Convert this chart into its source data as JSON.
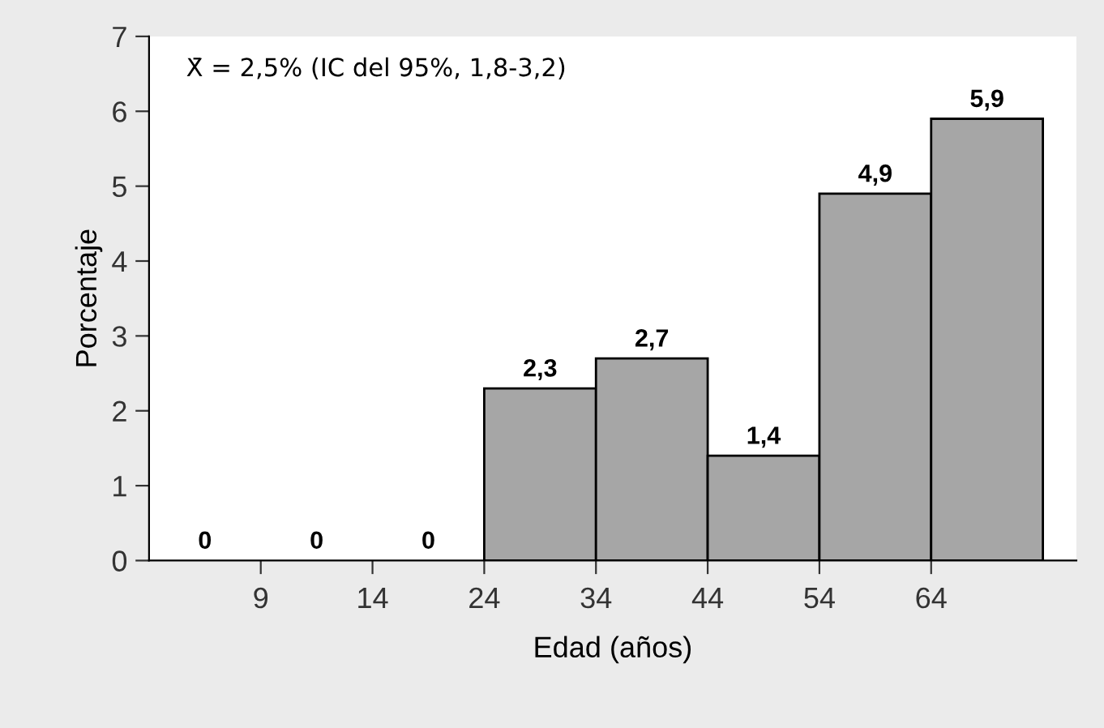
{
  "chart_data": {
    "type": "bar",
    "xlabel": "Edad (años)",
    "ylabel": "Porcentaje",
    "categories": [
      null,
      null,
      null,
      null,
      null,
      null,
      null,
      null
    ],
    "values": [
      0,
      0,
      0,
      2.3,
      2.7,
      1.4,
      4.9,
      5.9
    ],
    "value_labels": [
      "0",
      "0",
      "0",
      "2,3",
      "2,7",
      "1,4",
      "4,9",
      "5,9"
    ],
    "color": "#a6a6a6",
    "ylim": [
      0,
      7
    ],
    "yticks": [
      0,
      1,
      2,
      3,
      4,
      5,
      6,
      7
    ],
    "grid": false,
    "legend": false,
    "annotations": [
      "X̄ = 2,5% (IC del 95%, 1,8-3,2)",
      "9",
      "14",
      "24",
      "34",
      "44",
      "54",
      "64"
    ]
  }
}
